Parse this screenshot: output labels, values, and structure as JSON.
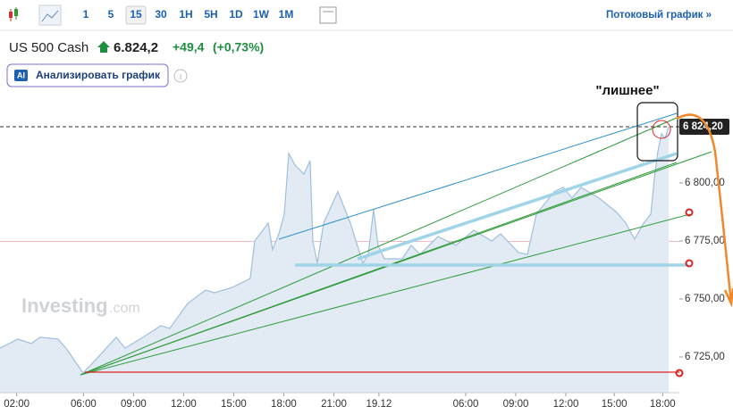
{
  "toolbar": {
    "intervals": [
      "1",
      "5",
      "15",
      "30",
      "1H",
      "5H",
      "1D",
      "1W",
      "1M"
    ],
    "selected": "15",
    "stream_link": "Потоковый график »"
  },
  "header": {
    "symbol": "US 500 Cash",
    "price": "6.824,2",
    "change": "+49,4",
    "change_pct": "(+0,73%)"
  },
  "ai_button": {
    "badge": "AI",
    "label": "Анализировать график"
  },
  "chart_data": {
    "type": "area",
    "watermark": "Investing",
    "watermark_suffix": ".com",
    "annotation": "\"лишнее\"",
    "x": [
      -1.0,
      0.07,
      0.87,
      1.41,
      2.48,
      3.02,
      3.98,
      4.89,
      5.96,
      6.5,
      7.57,
      8.64,
      9.17,
      10.25,
      11.32,
      11.85,
      12.92,
      13.99,
      14.26,
      15.07,
      15.33,
      15.71,
      16.03,
      16.3,
      16.67,
      17.21,
      17.58,
      17.74,
      18.01,
      18.39,
      19.24,
      19.99,
      20.74,
      21.06,
      21.38,
      21.65,
      22.03,
      23.1,
      23.63,
      24.17,
      25.24,
      26.31,
      27.38,
      28.46,
      28.99,
      30.06,
      30.6,
      31.13,
      32.2,
      32.74,
      33.27,
      33.81,
      34.88,
      35.95,
      36.49,
      37.02,
      37.56,
      37.99,
      38.2,
      38.41,
      38.63,
      38.84,
      39.06
    ],
    "series": [
      {
        "name": "US 500 Cash",
        "color": "#9fbfdc",
        "fill": "#e2ebf4",
        "values": [
          6728.8,
          6732.7,
          6730.8,
          6733.5,
          6732.7,
          6728.1,
          6718.1,
          6725.0,
          6733.5,
          6728.8,
          6733.5,
          6738.5,
          6737.3,
          6748.1,
          6753.8,
          6752.7,
          6755.0,
          6758.8,
          6775.0,
          6782.7,
          6771.2,
          6778.1,
          6786.5,
          6812.7,
          6807.7,
          6803.8,
          6809.6,
          6775.0,
          6765.4,
          6782.7,
          6796.2,
          6782.7,
          6765.4,
          6769.2,
          6788.5,
          6773.1,
          6767.3,
          6767.3,
          6773.1,
          6769.2,
          6776.9,
          6773.1,
          6779.6,
          6775.0,
          6778.1,
          6770.0,
          6769.2,
          6786.5,
          6796.2,
          6798.1,
          6793.5,
          6798.1,
          6793.5,
          6787.3,
          6782.7,
          6775.8,
          6782.7,
          6786.5,
          6801.9,
          6813.5,
          6821.2,
          6819.2,
          6824.2
        ]
      }
    ],
    "current_price": {
      "value": 6824.2,
      "label": "6 824,20"
    },
    "previous_close": 6774.8,
    "xlim": [
      -1,
      39.7
    ],
    "xticks": [
      {
        "value": 0,
        "label": "02:00"
      },
      {
        "value": 4,
        "label": "06:00"
      },
      {
        "value": 7,
        "label": "09:00"
      },
      {
        "value": 10,
        "label": "12:00"
      },
      {
        "value": 13,
        "label": "15:00"
      },
      {
        "value": 16,
        "label": "18:00"
      },
      {
        "value": 19,
        "label": "21:00"
      },
      {
        "value": 21.7,
        "label": "19.12"
      },
      {
        "value": 26.9,
        "label": "06:00"
      },
      {
        "value": 29.9,
        "label": "09:00"
      },
      {
        "value": 32.9,
        "label": "12:00"
      },
      {
        "value": 35.8,
        "label": "15:00"
      },
      {
        "value": 38.7,
        "label": "18:00"
      }
    ],
    "ylim": [
      6709.6,
      6834.6
    ],
    "yticks": [
      {
        "value": 6725,
        "label": "6 725,00"
      },
      {
        "value": 6750,
        "label": "6 750,00"
      },
      {
        "value": 6775,
        "label": "6 775,00"
      },
      {
        "value": 6800,
        "label": "6 800,00"
      }
    ],
    "grid": false
  }
}
